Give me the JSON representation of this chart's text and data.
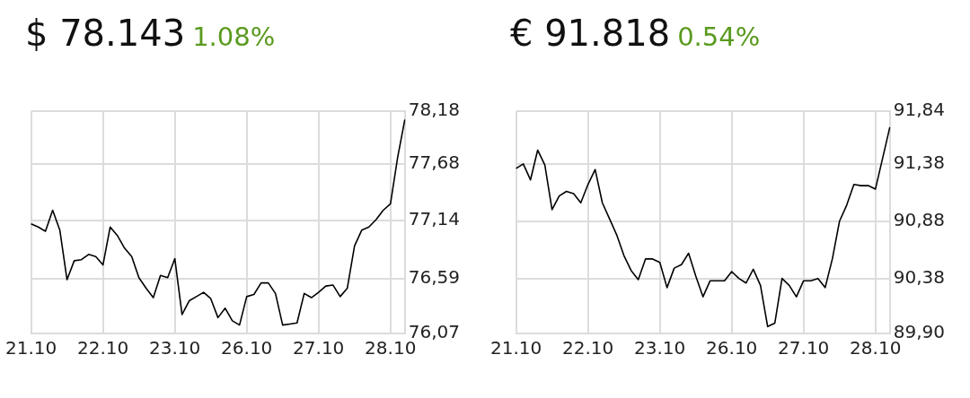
{
  "chart_data": [
    {
      "type": "line",
      "title": "$ 78.143",
      "subtitle": "1.08%",
      "grid": true,
      "line_style": "solid",
      "categories": [
        "21.10",
        null,
        null,
        null,
        null,
        null,
        null,
        null,
        null,
        null,
        "22.10",
        null,
        null,
        null,
        null,
        null,
        null,
        null,
        null,
        null,
        "23.10",
        null,
        null,
        null,
        null,
        null,
        null,
        null,
        null,
        null,
        "26.10",
        null,
        null,
        null,
        null,
        null,
        null,
        null,
        null,
        null,
        "27.10",
        null,
        null,
        null,
        null,
        null,
        null,
        null,
        null,
        null,
        "28.10",
        null,
        null
      ],
      "ylim": [
        76.07,
        78.18
      ],
      "yticks": [
        {
          "value": 76.07,
          "label": "76,07"
        },
        {
          "value": 76.59,
          "label": "76,59"
        },
        {
          "value": 77.14,
          "label": "77,14"
        },
        {
          "value": 77.68,
          "label": "77,68"
        },
        {
          "value": 78.18,
          "label": "78,18"
        }
      ],
      "series": [
        {
          "color": "#000000",
          "values": [
            77.11,
            77.08,
            77.04,
            77.24,
            77.05,
            76.58,
            76.76,
            76.77,
            76.82,
            76.8,
            76.72,
            77.08,
            77.0,
            76.88,
            76.8,
            76.6,
            76.5,
            76.41,
            76.62,
            76.6,
            76.78,
            76.25,
            76.38,
            76.42,
            76.46,
            76.4,
            76.22,
            76.31,
            76.19,
            76.15,
            76.42,
            76.44,
            76.55,
            76.55,
            76.45,
            76.15,
            76.16,
            76.17,
            76.45,
            76.41,
            76.46,
            76.52,
            76.53,
            76.42,
            76.5,
            76.9,
            77.05,
            77.08,
            77.15,
            77.24,
            77.3,
            77.74,
            78.1
          ]
        }
      ]
    },
    {
      "type": "line",
      "title": "€ 91.818",
      "subtitle": "0.54%",
      "grid": true,
      "line_style": "solid",
      "categories": [
        "21.10",
        null,
        null,
        null,
        null,
        null,
        null,
        null,
        null,
        null,
        "22.10",
        null,
        null,
        null,
        null,
        null,
        null,
        null,
        null,
        null,
        "23.10",
        null,
        null,
        null,
        null,
        null,
        null,
        null,
        null,
        null,
        "26.10",
        null,
        null,
        null,
        null,
        null,
        null,
        null,
        null,
        null,
        "27.10",
        null,
        null,
        null,
        null,
        null,
        null,
        null,
        null,
        null,
        "28.10",
        null,
        null
      ],
      "ylim": [
        89.9,
        91.84
      ],
      "yticks": [
        {
          "value": 89.9,
          "label": "89,90"
        },
        {
          "value": 90.38,
          "label": "90,38"
        },
        {
          "value": 90.88,
          "label": "90,88"
        },
        {
          "value": 91.38,
          "label": "91,38"
        },
        {
          "value": 91.84,
          "label": "91,84"
        }
      ],
      "series": [
        {
          "color": "#000000",
          "values": [
            91.34,
            91.38,
            91.24,
            91.5,
            91.37,
            90.98,
            91.1,
            91.14,
            91.12,
            91.04,
            91.2,
            91.33,
            91.04,
            90.9,
            90.76,
            90.58,
            90.45,
            90.37,
            90.55,
            90.55,
            90.52,
            90.3,
            90.47,
            90.5,
            90.6,
            90.4,
            90.22,
            90.36,
            90.36,
            90.36,
            90.44,
            90.38,
            90.34,
            90.46,
            90.32,
            89.96,
            89.99,
            90.38,
            90.32,
            90.22,
            90.36,
            90.36,
            90.38,
            90.3,
            90.55,
            90.88,
            91.02,
            91.2,
            91.19,
            91.19,
            91.16,
            91.43,
            91.7
          ]
        }
      ]
    }
  ]
}
